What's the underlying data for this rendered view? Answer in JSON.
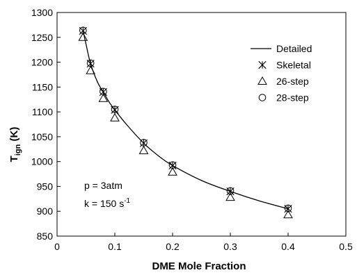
{
  "chart_data": {
    "type": "line",
    "xlabel": "DME Mole Fraction",
    "ylabel_main": "T",
    "ylabel_sub": "ign",
    "ylabel_unit": " (K)",
    "xlim": [
      0,
      0.5
    ],
    "ylim": [
      850,
      1300
    ],
    "xticks": [
      0,
      0.1,
      0.2,
      0.3,
      0.4,
      0.5
    ],
    "xtick_labels": [
      "0",
      "0.1",
      "0.2",
      "0.3",
      "0.4",
      "0.5"
    ],
    "yticks": [
      850,
      900,
      950,
      1000,
      1050,
      1100,
      1150,
      1200,
      1250,
      1300
    ],
    "ytick_labels": [
      "850",
      "900",
      "950",
      "1000",
      "1050",
      "1100",
      "1150",
      "1200",
      "1250",
      "1300"
    ],
    "grid": false,
    "legend_position": "top-right",
    "series": [
      {
        "name": "Detailed",
        "marker": "line",
        "x": [
          0.045,
          0.05,
          0.058,
          0.07,
          0.08,
          0.09,
          0.1,
          0.12,
          0.15,
          0.175,
          0.2,
          0.25,
          0.3,
          0.35,
          0.4
        ],
        "y": [
          1263,
          1237,
          1197,
          1160,
          1140,
          1120,
          1104,
          1075,
          1037,
          1012,
          992,
          962,
          940,
          921,
          905
        ]
      },
      {
        "name": "Skeletal",
        "marker": "asterisk",
        "x": [
          0.045,
          0.058,
          0.08,
          0.1,
          0.15,
          0.2,
          0.3,
          0.4
        ],
        "y": [
          1263,
          1197,
          1140,
          1104,
          1037,
          992,
          940,
          905
        ]
      },
      {
        "name": "26-step",
        "marker": "triangle",
        "x": [
          0.045,
          0.058,
          0.08,
          0.1,
          0.15,
          0.2,
          0.3,
          0.4
        ],
        "y": [
          1250,
          1183,
          1127,
          1088,
          1022,
          979,
          928,
          893
        ]
      },
      {
        "name": "28-step",
        "marker": "circle",
        "x": [
          0.045,
          0.058,
          0.08,
          0.1,
          0.15,
          0.2,
          0.3,
          0.4
        ],
        "y": [
          1264,
          1198,
          1141,
          1105,
          1038,
          993,
          941,
          906
        ]
      }
    ],
    "annotations": {
      "pressure": "p = 3atm",
      "strain_main": "k = 150 s",
      "strain_sup": "-1"
    }
  }
}
